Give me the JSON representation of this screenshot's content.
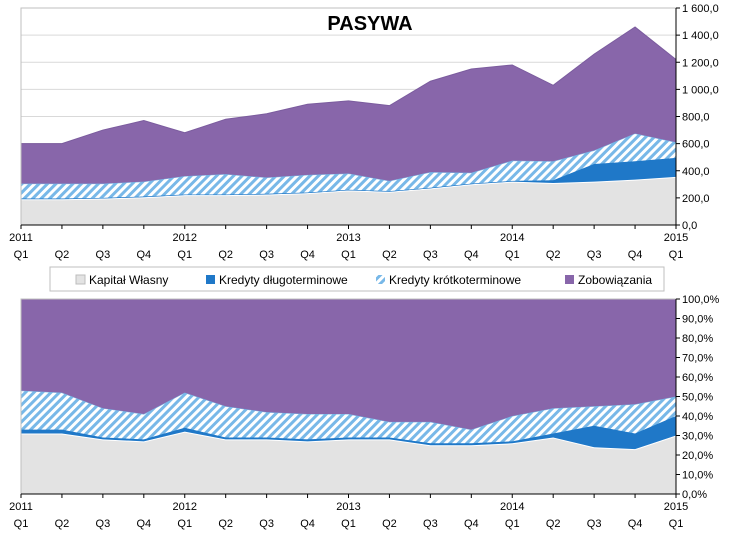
{
  "colors": {
    "kapital": "#e3e3e3",
    "kredyty_dlugo": "#1f78c8",
    "kredyty_krotko": "#78b8e8",
    "zobowiazania": "#8866aa",
    "zobowiazania_edge": "#7b5c9e"
  },
  "x_ticks": [
    {
      "year": "2011",
      "q": "Q1"
    },
    {
      "year": "",
      "q": "Q2"
    },
    {
      "year": "",
      "q": "Q3"
    },
    {
      "year": "",
      "q": "Q4"
    },
    {
      "year": "2012",
      "q": "Q1"
    },
    {
      "year": "",
      "q": "Q2"
    },
    {
      "year": "",
      "q": "Q3"
    },
    {
      "year": "",
      "q": "Q4"
    },
    {
      "year": "2013",
      "q": "Q1"
    },
    {
      "year": "",
      "q": "Q2"
    },
    {
      "year": "",
      "q": "Q3"
    },
    {
      "year": "",
      "q": "Q4"
    },
    {
      "year": "2014",
      "q": "Q1"
    },
    {
      "year": "",
      "q": "Q2"
    },
    {
      "year": "",
      "q": "Q3"
    },
    {
      "year": "",
      "q": "Q4"
    },
    {
      "year": "2015",
      "q": "Q1"
    }
  ],
  "legend": [
    {
      "key": "kapital",
      "label": "Kapitał Własny",
      "pattern": "solid"
    },
    {
      "key": "kredyty_dlugo",
      "label": "Kredyty długoterminowe",
      "pattern": "solid"
    },
    {
      "key": "kredyty_krotko",
      "label": "Kredyty krótkoterminowe",
      "pattern": "hatch"
    },
    {
      "key": "zobowiazania",
      "label": "Zobowiązania",
      "pattern": "solid"
    }
  ],
  "chart_data": [
    {
      "type": "area",
      "stacked": true,
      "title": "PASYWA",
      "ylim": [
        0,
        1600
      ],
      "y_ticks": [
        "0,0",
        "200,0",
        "400,0",
        "600,0",
        "800,0",
        "1 000,0",
        "1 200,0",
        "1 400,0",
        "1 600,0"
      ],
      "y_tick_values": [
        0,
        200,
        400,
        600,
        800,
        1000,
        1200,
        1400,
        1600
      ],
      "grid": true,
      "legend_position": "bottom",
      "series": [
        {
          "key": "kapital",
          "name": "Kapitał Własny",
          "values": [
            190,
            190,
            195,
            205,
            220,
            220,
            225,
            235,
            255,
            245,
            270,
            300,
            320,
            310,
            320,
            335,
            355
          ]
        },
        {
          "key": "kredyty_dlugo",
          "name": "Kredyty długoterminowe",
          "values": [
            5,
            5,
            5,
            5,
            5,
            5,
            5,
            5,
            5,
            5,
            5,
            5,
            5,
            20,
            130,
            135,
            140
          ]
        },
        {
          "key": "kredyty_krotko",
          "name": "Kredyty krótkoterminowe",
          "values": [
            110,
            110,
            105,
            110,
            135,
            150,
            120,
            130,
            120,
            75,
            115,
            80,
            150,
            140,
            100,
            205,
            115
          ]
        },
        {
          "key": "zobowiazania",
          "name": "Zobowiązania",
          "values": [
            295,
            295,
            395,
            450,
            320,
            405,
            470,
            520,
            535,
            555,
            670,
            765,
            705,
            560,
            710,
            785,
            610
          ]
        }
      ]
    },
    {
      "type": "area",
      "stacked": true,
      "percent": true,
      "ylim": [
        0,
        100
      ],
      "y_ticks": [
        "0,0%",
        "10,0%",
        "20,0%",
        "30,0%",
        "40,0%",
        "50,0%",
        "60,0%",
        "70,0%",
        "80,0%",
        "90,0%",
        "100,0%"
      ],
      "y_tick_values": [
        0,
        10,
        20,
        30,
        40,
        50,
        60,
        70,
        80,
        90,
        100
      ],
      "grid": true,
      "series": [
        {
          "key": "kapital",
          "name": "Kapitał Własny",
          "values": [
            31,
            31,
            28,
            27,
            32,
            28,
            28,
            27,
            28,
            28,
            25,
            25,
            26,
            29,
            24,
            23,
            30
          ]
        },
        {
          "key": "kredyty_dlugo",
          "name": "Kredyty długoterminowe",
          "values": [
            2,
            2,
            1,
            1,
            2,
            1,
            1,
            1,
            1,
            1,
            1,
            1,
            1,
            2,
            11,
            8,
            10
          ]
        },
        {
          "key": "kredyty_krotko",
          "name": "Kredyty krótkoterminowe",
          "values": [
            20,
            19,
            15,
            13,
            18,
            16,
            13,
            13,
            12,
            8,
            11,
            7,
            13,
            13,
            10,
            15,
            10
          ]
        },
        {
          "key": "zobowiazania",
          "name": "Zobowiązania",
          "values": [
            47,
            48,
            56,
            59,
            48,
            55,
            58,
            59,
            59,
            63,
            63,
            67,
            60,
            56,
            55,
            54,
            50
          ]
        }
      ]
    }
  ]
}
